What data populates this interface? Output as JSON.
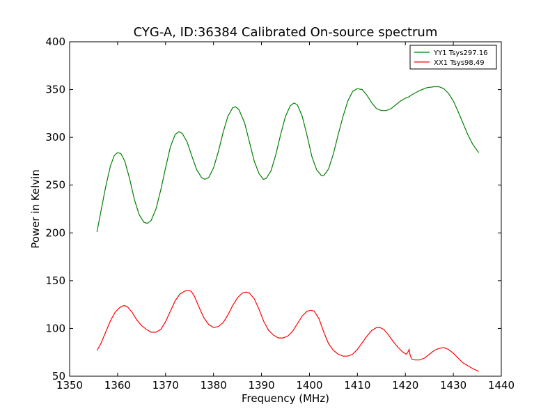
{
  "chart_data": {
    "type": "line",
    "title": "CYG-A, ID:36384 Calibrated On-source spectrum",
    "xlabel": "Frequency (MHz)",
    "ylabel": "Power in Kelvin",
    "xlim": [
      1350,
      1440
    ],
    "ylim": [
      50,
      400
    ],
    "xticks": [
      1350,
      1360,
      1370,
      1380,
      1390,
      1400,
      1410,
      1420,
      1430,
      1440
    ],
    "yticks": [
      50,
      100,
      150,
      200,
      250,
      300,
      350,
      400
    ],
    "grid": false,
    "legend_position": "top-right",
    "series": [
      {
        "name": "YY1 Tsys297.16",
        "color": "#008000",
        "points": [
          [
            1355.7,
            201
          ],
          [
            1356.5,
            222
          ],
          [
            1357.5,
            248
          ],
          [
            1358.5,
            270
          ],
          [
            1359.3,
            281
          ],
          [
            1360.0,
            284
          ],
          [
            1360.7,
            283
          ],
          [
            1361.5,
            275
          ],
          [
            1362.5,
            257
          ],
          [
            1363.5,
            235
          ],
          [
            1364.5,
            219
          ],
          [
            1365.5,
            211
          ],
          [
            1366.2,
            210
          ],
          [
            1367.0,
            213
          ],
          [
            1368.0,
            225
          ],
          [
            1369.0,
            245
          ],
          [
            1370.0,
            268
          ],
          [
            1371.0,
            290
          ],
          [
            1372.0,
            303
          ],
          [
            1372.8,
            306
          ],
          [
            1373.5,
            304
          ],
          [
            1374.5,
            295
          ],
          [
            1375.5,
            280
          ],
          [
            1376.5,
            266
          ],
          [
            1377.5,
            258
          ],
          [
            1378.2,
            256
          ],
          [
            1379.0,
            258
          ],
          [
            1380.0,
            268
          ],
          [
            1381.0,
            285
          ],
          [
            1382.0,
            305
          ],
          [
            1383.0,
            322
          ],
          [
            1384.0,
            331
          ],
          [
            1384.6,
            332
          ],
          [
            1385.3,
            329
          ],
          [
            1386.5,
            315
          ],
          [
            1387.5,
            295
          ],
          [
            1388.5,
            275
          ],
          [
            1389.5,
            262
          ],
          [
            1390.4,
            256
          ],
          [
            1391.0,
            257
          ],
          [
            1392.0,
            265
          ],
          [
            1393.0,
            282
          ],
          [
            1394.0,
            303
          ],
          [
            1395.0,
            322
          ],
          [
            1396.0,
            333
          ],
          [
            1396.8,
            336
          ],
          [
            1397.5,
            334
          ],
          [
            1398.5,
            322
          ],
          [
            1399.5,
            302
          ],
          [
            1400.5,
            280
          ],
          [
            1401.5,
            266
          ],
          [
            1402.5,
            260
          ],
          [
            1403.0,
            260
          ],
          [
            1404.0,
            267
          ],
          [
            1405.0,
            283
          ],
          [
            1406.0,
            303
          ],
          [
            1407.0,
            322
          ],
          [
            1408.0,
            338
          ],
          [
            1409.0,
            348
          ],
          [
            1410.0,
            351
          ],
          [
            1411.0,
            350
          ],
          [
            1412.0,
            344
          ],
          [
            1413.0,
            336
          ],
          [
            1414.0,
            330
          ],
          [
            1415.0,
            328
          ],
          [
            1416.0,
            328
          ],
          [
            1417.0,
            330
          ],
          [
            1418.0,
            334
          ],
          [
            1419.0,
            338
          ],
          [
            1420.0,
            341
          ],
          [
            1420.6,
            342
          ],
          [
            1421.5,
            345
          ],
          [
            1423.0,
            349
          ],
          [
            1424.5,
            352
          ],
          [
            1426.0,
            353
          ],
          [
            1427.0,
            353
          ],
          [
            1428.0,
            351
          ],
          [
            1429.0,
            346
          ],
          [
            1430.0,
            338
          ],
          [
            1431.0,
            327
          ],
          [
            1432.0,
            315
          ],
          [
            1433.0,
            303
          ],
          [
            1434.0,
            293
          ],
          [
            1435.3,
            284
          ]
        ]
      },
      {
        "name": "XX1 Tsys98.49",
        "color": "#ff0000",
        "points": [
          [
            1355.7,
            77
          ],
          [
            1356.5,
            84
          ],
          [
            1357.5,
            96
          ],
          [
            1358.5,
            108
          ],
          [
            1359.5,
            117
          ],
          [
            1360.5,
            122
          ],
          [
            1361.3,
            124
          ],
          [
            1362.0,
            123
          ],
          [
            1363.0,
            117
          ],
          [
            1364.0,
            109
          ],
          [
            1365.0,
            103
          ],
          [
            1366.0,
            99
          ],
          [
            1367.0,
            96
          ],
          [
            1368.0,
            96
          ],
          [
            1369.0,
            99
          ],
          [
            1370.0,
            107
          ],
          [
            1371.0,
            118
          ],
          [
            1372.0,
            129
          ],
          [
            1373.0,
            136
          ],
          [
            1374.0,
            139
          ],
          [
            1374.6,
            140
          ],
          [
            1375.3,
            139
          ],
          [
            1376.0,
            134
          ],
          [
            1377.0,
            122
          ],
          [
            1378.0,
            111
          ],
          [
            1379.0,
            104
          ],
          [
            1380.0,
            101
          ],
          [
            1381.0,
            102
          ],
          [
            1382.0,
            106
          ],
          [
            1383.0,
            114
          ],
          [
            1384.0,
            124
          ],
          [
            1385.0,
            132
          ],
          [
            1386.0,
            137
          ],
          [
            1386.8,
            138
          ],
          [
            1387.5,
            137
          ],
          [
            1388.5,
            131
          ],
          [
            1389.5,
            120
          ],
          [
            1390.5,
            107
          ],
          [
            1391.5,
            98
          ],
          [
            1392.5,
            93
          ],
          [
            1393.5,
            90
          ],
          [
            1394.5,
            90
          ],
          [
            1395.5,
            92
          ],
          [
            1396.5,
            97
          ],
          [
            1397.5,
            105
          ],
          [
            1398.5,
            113
          ],
          [
            1399.5,
            118
          ],
          [
            1400.3,
            119
          ],
          [
            1401.0,
            118
          ],
          [
            1402.0,
            110
          ],
          [
            1403.0,
            96
          ],
          [
            1404.0,
            84
          ],
          [
            1405.0,
            77
          ],
          [
            1406.0,
            73
          ],
          [
            1407.0,
            71
          ],
          [
            1408.0,
            71
          ],
          [
            1409.0,
            73
          ],
          [
            1410.0,
            78
          ],
          [
            1411.0,
            85
          ],
          [
            1412.0,
            92
          ],
          [
            1413.0,
            98
          ],
          [
            1414.0,
            101
          ],
          [
            1414.7,
            101
          ],
          [
            1415.5,
            99
          ],
          [
            1416.5,
            93
          ],
          [
            1417.5,
            86
          ],
          [
            1418.5,
            80
          ],
          [
            1419.5,
            75
          ],
          [
            1420.2,
            73
          ],
          [
            1420.6,
            76
          ],
          [
            1420.8,
            78
          ],
          [
            1421.0,
            72
          ],
          [
            1421.3,
            68
          ],
          [
            1422.0,
            67
          ],
          [
            1423.0,
            67
          ],
          [
            1424.0,
            69
          ],
          [
            1425.0,
            73
          ],
          [
            1426.0,
            77
          ],
          [
            1427.0,
            79
          ],
          [
            1428.0,
            80
          ],
          [
            1429.0,
            78
          ],
          [
            1430.0,
            74
          ],
          [
            1431.0,
            69
          ],
          [
            1432.0,
            64
          ],
          [
            1433.0,
            61
          ],
          [
            1434.0,
            58
          ],
          [
            1435.3,
            55
          ]
        ]
      }
    ]
  }
}
